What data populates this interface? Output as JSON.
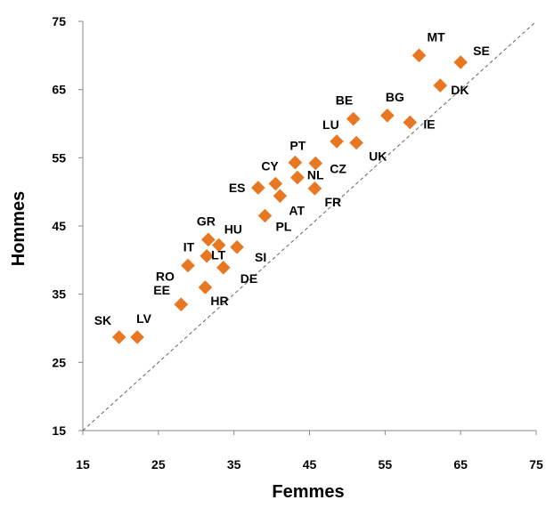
{
  "chart_data": {
    "type": "scatter",
    "xlabel": "Femmes",
    "ylabel": "Hommes",
    "xlim": [
      15,
      75
    ],
    "ylim": [
      15,
      75
    ],
    "xticks": [
      15,
      25,
      35,
      45,
      55,
      65,
      75
    ],
    "yticks": [
      15,
      25,
      35,
      45,
      55,
      65,
      75
    ],
    "grid": false,
    "reference_line": "y = x (dashed)",
    "marker": "diamond",
    "marker_color": "#E87722",
    "marker_edge_color": "#FFFFFF",
    "points": [
      {
        "label": "MT",
        "x": 59.5,
        "y": 70.0
      },
      {
        "label": "SE",
        "x": 65.0,
        "y": 69.0
      },
      {
        "label": "DK",
        "x": 62.3,
        "y": 65.6
      },
      {
        "label": "BE",
        "x": 50.8,
        "y": 60.7
      },
      {
        "label": "BG",
        "x": 55.3,
        "y": 61.2
      },
      {
        "label": "IE",
        "x": 58.3,
        "y": 60.2
      },
      {
        "label": "LU",
        "x": 48.6,
        "y": 57.4
      },
      {
        "label": "UK",
        "x": 51.2,
        "y": 57.2
      },
      {
        "label": "PT",
        "x": 43.1,
        "y": 54.3
      },
      {
        "label": "CZ",
        "x": 45.8,
        "y": 54.2
      },
      {
        "label": "CY",
        "x": 40.5,
        "y": 51.2
      },
      {
        "label": "NL",
        "x": 43.4,
        "y": 52.1
      },
      {
        "label": "ES",
        "x": 38.2,
        "y": 50.6
      },
      {
        "label": "FR",
        "x": 45.7,
        "y": 50.5
      },
      {
        "label": "AT",
        "x": 41.1,
        "y": 49.4
      },
      {
        "label": "PL",
        "x": 39.1,
        "y": 46.5
      },
      {
        "label": "GR",
        "x": 31.6,
        "y": 43.0
      },
      {
        "label": "HU",
        "x": 33.0,
        "y": 42.2
      },
      {
        "label": "SI",
        "x": 35.4,
        "y": 41.9
      },
      {
        "label": "IT",
        "x": 29.0,
        "y": 39.3
      },
      {
        "label": "LT",
        "x": 31.4,
        "y": 40.6
      },
      {
        "label": "RO",
        "x": 28.9,
        "y": 39.2
      },
      {
        "label": "DE",
        "x": 33.6,
        "y": 38.9
      },
      {
        "label": "HR",
        "x": 31.2,
        "y": 36.0
      },
      {
        "label": "EE",
        "x": 28.0,
        "y": 33.5
      },
      {
        "label": "SK",
        "x": 19.8,
        "y": 28.7
      },
      {
        "label": "LV",
        "x": 22.2,
        "y": 28.7
      }
    ]
  }
}
